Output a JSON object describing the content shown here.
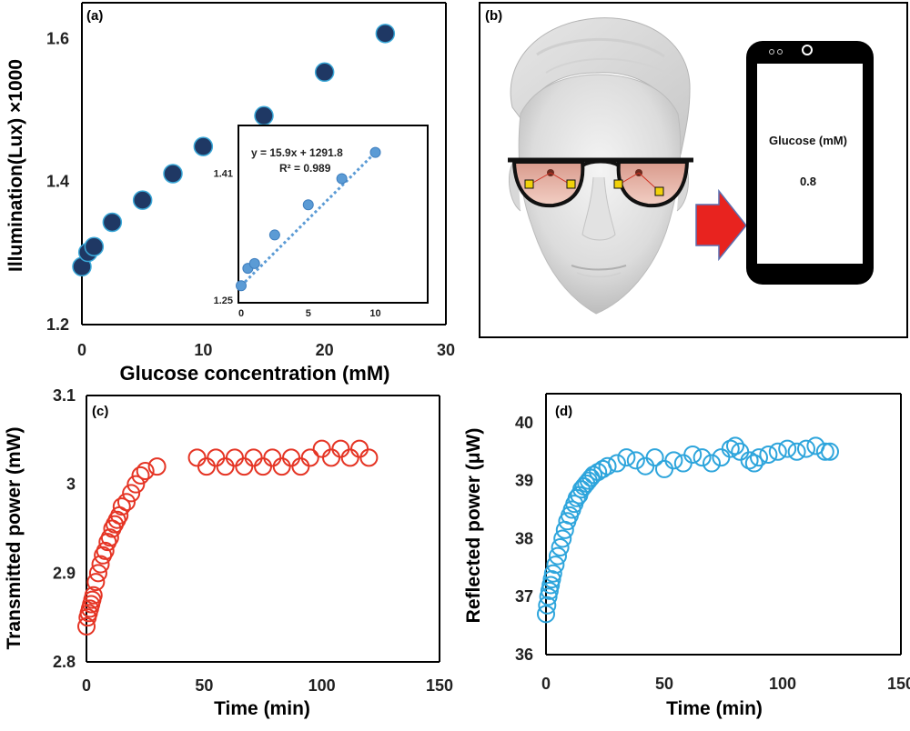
{
  "chart_data": [
    {
      "panel": "(a)",
      "type": "scatter",
      "xlabel": "Glucose concentration (mM)",
      "ylabel": "Illumination(Lux) ×1000",
      "xlim": [
        0,
        30
      ],
      "ylim": [
        1.2,
        1.65
      ],
      "xticks": [
        "0",
        "10",
        "20",
        "30"
      ],
      "yticks": [
        "1.2",
        "1.4",
        "1.6"
      ],
      "marker_color": "#1f3864",
      "marker_edge": "#3aa8d8",
      "series": [
        {
          "x": [
            0,
            0.5,
            1,
            2.5,
            5,
            7.5,
            10,
            15,
            20,
            25
          ],
          "y": [
            1.281,
            1.301,
            1.309,
            1.343,
            1.374,
            1.411,
            1.449,
            1.492,
            1.553,
            1.607
          ]
        }
      ],
      "inset": {
        "type": "scatter",
        "xlim": [
          0,
          12
        ],
        "ylim": [
          1.25,
          1.47
        ],
        "xticks": [
          "0",
          "5",
          "10"
        ],
        "yticks": [
          "1.25",
          "1.41"
        ],
        "equation": "y = 15.9x + 1291.8",
        "r2": "R² = 0.989",
        "marker_color": "#5b9bd5",
        "trendline_color": "#5b9bd5",
        "x": [
          0,
          0.5,
          1,
          2.5,
          5,
          7.5,
          10
        ],
        "y": [
          1.268,
          1.29,
          1.296,
          1.332,
          1.37,
          1.403,
          1.436
        ]
      }
    },
    {
      "panel": "(c)",
      "type": "scatter",
      "xlabel": "Time (min)",
      "ylabel": "Transmitted power (mW)",
      "xlim": [
        0,
        150
      ],
      "ylim": [
        2.8,
        3.1
      ],
      "xticks": [
        "0",
        "50",
        "100",
        "150"
      ],
      "yticks": [
        "2.8",
        "2.9",
        "3",
        "3.1"
      ],
      "marker_color": "#e53525",
      "series": [
        {
          "x": [
            0,
            0.5,
            1,
            1.5,
            2,
            2.5,
            3,
            4,
            5,
            6,
            7,
            8,
            9,
            10,
            11,
            12,
            13,
            14,
            15,
            17,
            19,
            21,
            23,
            25,
            30,
            47,
            51,
            55,
            59,
            63,
            67,
            71,
            75,
            79,
            83,
            87,
            91,
            95,
            100,
            104,
            108,
            112,
            116,
            120
          ],
          "y": [
            2.84,
            2.85,
            2.855,
            2.86,
            2.865,
            2.87,
            2.875,
            2.89,
            2.9,
            2.91,
            2.92,
            2.925,
            2.935,
            2.94,
            2.95,
            2.955,
            2.96,
            2.965,
            2.975,
            2.98,
            2.99,
            3.0,
            3.01,
            3.015,
            3.02,
            3.03,
            3.02,
            3.03,
            3.02,
            3.03,
            3.02,
            3.03,
            3.02,
            3.03,
            3.02,
            3.03,
            3.02,
            3.03,
            3.04,
            3.03,
            3.04,
            3.03,
            3.04,
            3.03
          ]
        }
      ]
    },
    {
      "panel": "(d)",
      "type": "scatter",
      "xlabel": "Time (min)",
      "ylabel": "Reflected power (μW)",
      "xlim": [
        0,
        150
      ],
      "ylim": [
        36,
        40.5
      ],
      "xticks": [
        "0",
        "50",
        "100",
        "150"
      ],
      "yticks": [
        "36",
        "37",
        "38",
        "39",
        "40"
      ],
      "marker_color": "#2ea5dc",
      "series": [
        {
          "x": [
            0,
            0.5,
            1,
            1.5,
            2,
            2.5,
            3,
            4,
            5,
            6,
            7,
            8,
            9,
            10,
            11,
            12,
            13,
            14,
            15,
            16,
            17,
            18,
            19,
            20,
            22,
            24,
            26,
            30,
            34,
            38,
            42,
            46,
            50,
            54,
            58,
            62,
            66,
            70,
            74,
            78,
            80,
            82,
            86,
            88,
            90,
            94,
            98,
            102,
            106,
            110,
            114,
            118,
            120
          ],
          "y": [
            36.7,
            36.85,
            37.0,
            37.1,
            37.2,
            37.3,
            37.4,
            37.55,
            37.7,
            37.85,
            38.0,
            38.15,
            38.3,
            38.4,
            38.5,
            38.6,
            38.7,
            38.75,
            38.85,
            38.9,
            38.95,
            39.0,
            39.05,
            39.1,
            39.15,
            39.2,
            39.25,
            39.3,
            39.4,
            39.35,
            39.25,
            39.4,
            39.2,
            39.35,
            39.3,
            39.45,
            39.4,
            39.3,
            39.4,
            39.55,
            39.6,
            39.5,
            39.35,
            39.3,
            39.4,
            39.45,
            39.5,
            39.55,
            39.5,
            39.55,
            39.6,
            39.5,
            39.5
          ]
        }
      ]
    }
  ],
  "panel_b": {
    "label": "(b)",
    "phone_text_title": "Glucose (mM)",
    "phone_text_value": "0.8",
    "arrow_color": "#e8231f",
    "arrow_edge": "#5a6fb0",
    "lens_color": "#e8b4a8"
  }
}
